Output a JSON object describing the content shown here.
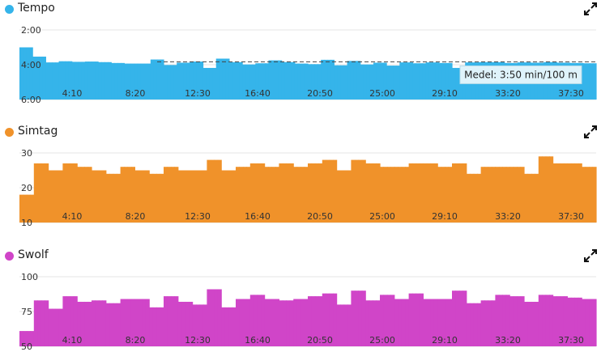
{
  "charts": [
    {
      "key": "tempo",
      "title": "Tempo",
      "color": "#35b4ea",
      "icon": "expand-icon",
      "chart_data": {
        "type": "bar",
        "x_tick_labels": [
          "4:10",
          "8:20",
          "12:30",
          "16:40",
          "20:50",
          "25:00",
          "29:10",
          "33:20",
          "37:30"
        ],
        "y_tick_labels": [
          "2:00",
          "4:00",
          "6:00"
        ],
        "y_ticks_seconds": [
          120,
          240,
          360
        ],
        "ylim_seconds": [
          120,
          360
        ],
        "y_inverted": true,
        "average_seconds": 230,
        "average_label": "Medel: 3:50 min/100 m",
        "values_seconds": [
          180,
          180,
          180,
          180,
          212,
          212,
          212,
          212,
          232,
          232,
          232,
          232,
          228,
          228,
          228,
          228,
          230,
          230,
          230,
          230,
          229,
          229,
          229,
          229,
          231,
          231,
          231,
          231,
          234,
          234,
          234,
          234,
          236,
          236,
          236,
          236,
          236,
          236,
          236,
          236,
          222,
          222,
          222,
          222,
          241,
          241,
          241,
          241,
          233,
          233,
          233,
          233,
          229,
          229,
          229,
          229,
          251,
          251,
          251,
          251,
          219,
          219,
          219,
          219,
          231,
          231,
          231,
          231,
          239,
          239,
          239,
          239,
          235,
          235,
          235,
          235,
          225,
          225,
          225,
          225,
          231,
          231,
          231,
          231,
          236,
          236,
          236,
          236,
          238,
          238,
          238,
          238,
          223,
          223,
          223,
          223,
          242,
          242,
          242,
          242,
          227,
          227,
          227,
          227,
          239,
          239,
          239,
          239,
          233,
          233,
          233,
          233,
          243,
          243,
          243,
          243,
          232,
          232,
          232,
          232,
          235,
          235,
          235,
          235,
          232,
          232,
          232,
          232,
          234,
          234,
          234,
          234,
          251,
          251,
          251,
          251,
          232,
          232,
          232,
          232,
          231,
          231,
          231,
          231,
          231,
          231,
          231,
          231,
          234,
          234,
          234,
          234,
          232,
          232,
          232,
          232,
          233,
          233,
          233,
          233,
          231,
          231,
          231,
          231,
          233,
          233,
          233,
          233,
          234,
          234,
          234,
          234,
          235,
          235,
          235,
          235
        ]
      }
    },
    {
      "key": "simtag",
      "title": "Simtag",
      "color": "#f0922a",
      "icon": "expand-icon",
      "chart_data": {
        "type": "bar",
        "x_tick_labels": [
          "4:10",
          "8:20",
          "12:30",
          "16:40",
          "20:50",
          "25:00",
          "29:10",
          "33:20",
          "37:30"
        ],
        "y_tick_labels": [
          "30",
          "20",
          "10"
        ],
        "y_ticks": [
          30,
          20,
          10
        ],
        "ylim": [
          10,
          30
        ],
        "values": [
          18,
          18,
          18,
          18,
          27,
          27,
          27,
          27,
          25,
          25,
          25,
          25,
          27,
          27,
          27,
          27,
          26,
          26,
          26,
          26,
          25,
          25,
          25,
          25,
          24,
          24,
          24,
          24,
          26,
          26,
          26,
          26,
          25,
          25,
          25,
          25,
          24,
          24,
          24,
          24,
          26,
          26,
          26,
          26,
          25,
          25,
          25,
          25,
          25,
          25,
          25,
          25,
          28,
          28,
          28,
          28,
          25,
          25,
          25,
          25,
          26,
          26,
          26,
          26,
          27,
          27,
          27,
          27,
          26,
          26,
          26,
          26,
          27,
          27,
          27,
          27,
          26,
          26,
          26,
          26,
          27,
          27,
          27,
          27,
          28,
          28,
          28,
          28,
          25,
          25,
          25,
          25,
          28,
          28,
          28,
          28,
          27,
          27,
          27,
          27,
          26,
          26,
          26,
          26,
          26,
          26,
          26,
          26,
          27,
          27,
          27,
          27,
          27,
          27,
          27,
          27,
          26,
          26,
          26,
          26,
          27,
          27,
          27,
          27,
          24,
          24,
          24,
          24,
          26,
          26,
          26,
          26,
          26,
          26,
          26,
          26,
          26,
          26,
          26,
          26,
          24,
          24,
          24,
          24,
          29,
          29,
          29,
          29,
          27,
          27,
          27,
          27,
          27,
          27,
          27,
          27,
          26,
          26,
          26,
          26
        ]
      }
    },
    {
      "key": "swolf",
      "title": "Swolf",
      "color": "#d045c8",
      "icon": "expand-icon",
      "chart_data": {
        "type": "bar",
        "x_tick_labels": [
          "4:10",
          "8:20",
          "12:30",
          "16:40",
          "20:50",
          "25:00",
          "29:10",
          "33:20",
          "37:30"
        ],
        "y_tick_labels": [
          "100",
          "75",
          "50"
        ],
        "y_ticks": [
          100,
          75,
          50
        ],
        "ylim": [
          50,
          100
        ],
        "values": [
          61,
          61,
          61,
          61,
          83,
          83,
          83,
          83,
          77,
          77,
          77,
          77,
          86,
          86,
          86,
          86,
          82,
          82,
          82,
          82,
          83,
          83,
          83,
          83,
          81,
          81,
          81,
          81,
          84,
          84,
          84,
          84,
          84,
          84,
          84,
          84,
          78,
          78,
          78,
          78,
          86,
          86,
          86,
          86,
          82,
          82,
          82,
          82,
          80,
          80,
          80,
          80,
          91,
          91,
          91,
          91,
          78,
          78,
          78,
          78,
          84,
          84,
          84,
          84,
          87,
          87,
          87,
          87,
          84,
          84,
          84,
          84,
          83,
          83,
          83,
          83,
          84,
          84,
          84,
          84,
          86,
          86,
          86,
          86,
          88,
          88,
          88,
          88,
          80,
          80,
          80,
          80,
          90,
          90,
          90,
          90,
          83,
          83,
          83,
          83,
          87,
          87,
          87,
          87,
          84,
          84,
          84,
          84,
          88,
          88,
          88,
          88,
          84,
          84,
          84,
          84,
          84,
          84,
          84,
          84,
          90,
          90,
          90,
          90,
          81,
          81,
          81,
          81,
          83,
          83,
          83,
          83,
          87,
          87,
          87,
          87,
          86,
          86,
          86,
          86,
          82,
          82,
          82,
          82,
          87,
          87,
          87,
          87,
          86,
          86,
          86,
          86,
          85,
          85,
          85,
          85,
          84,
          84,
          84,
          84
        ]
      }
    }
  ]
}
